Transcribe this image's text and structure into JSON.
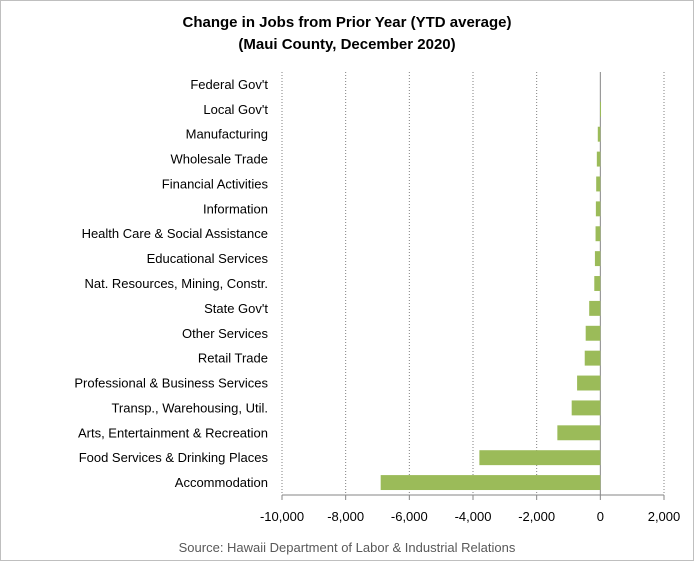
{
  "chart_data": {
    "type": "bar",
    "orientation": "horizontal",
    "title_line1": "Change in Jobs from Prior Year (YTD average)",
    "title_line2": "(Maui County, December 2020)",
    "source": "Source: Hawaii Department of Labor & Industrial Relations",
    "xlim": [
      -10000,
      2000
    ],
    "x_ticks": [
      -10000,
      -8000,
      -6000,
      -4000,
      -2000,
      0,
      2000
    ],
    "x_tick_labels": [
      "-10,000",
      "-8,000",
      "-6,000",
      "-4,000",
      "-2,000",
      "0",
      "2,000"
    ],
    "grid": "vertical-dotted",
    "bar_color": "#9bbb59",
    "categories": [
      "Federal Gov't",
      "Local Gov't",
      "Manufacturing",
      "Wholesale Trade",
      "Financial Activities",
      "Information",
      "Health Care & Social Assistance",
      "Educational Services",
      "Nat. Resources, Mining, Constr.",
      "State Gov't",
      "Other Services",
      "Retail Trade",
      "Professional & Business Services",
      "Transp., Warehousing, Util.",
      "Arts, Entertainment & Recreation",
      "Food Services & Drinking Places",
      "Accommodation"
    ],
    "values": [
      0,
      -10,
      -80,
      -110,
      -130,
      -140,
      -150,
      -170,
      -190,
      -350,
      -460,
      -490,
      -730,
      -900,
      -1350,
      -3800,
      -6900
    ]
  }
}
